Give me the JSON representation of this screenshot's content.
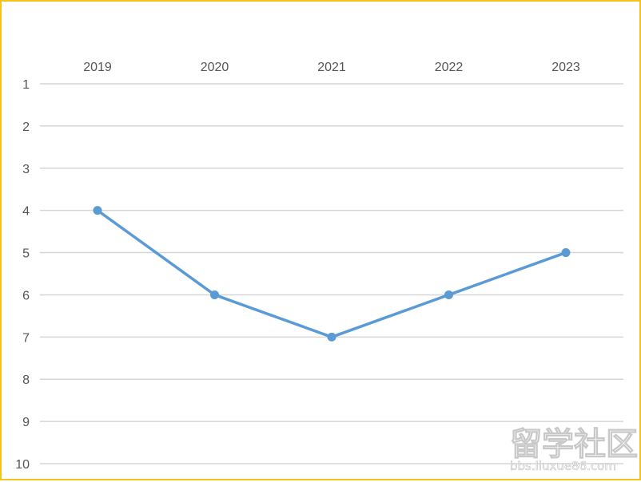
{
  "chart_data": {
    "type": "line",
    "categories": [
      "2019",
      "2020",
      "2021",
      "2022",
      "2023"
    ],
    "series": [
      {
        "values": [
          4,
          6,
          7,
          6,
          5
        ],
        "color": "#5b9bd5"
      }
    ],
    "y_ticks": [
      "1",
      "2",
      "3",
      "4",
      "5",
      "6",
      "7",
      "8",
      "9",
      "10"
    ],
    "ylim": [
      1,
      10
    ],
    "y_axis_inverted": true,
    "x_axis_position": "top",
    "grid": true,
    "legend": "none",
    "title": "",
    "xlabel": "",
    "ylabel": ""
  },
  "watermark": {
    "main": "留学社区",
    "sub": "bbs.liuxue86.com"
  },
  "colors": {
    "border": "#f4c21a",
    "line": "#5b9bd5",
    "grid": "#d6d6d6",
    "text": "#555555"
  }
}
